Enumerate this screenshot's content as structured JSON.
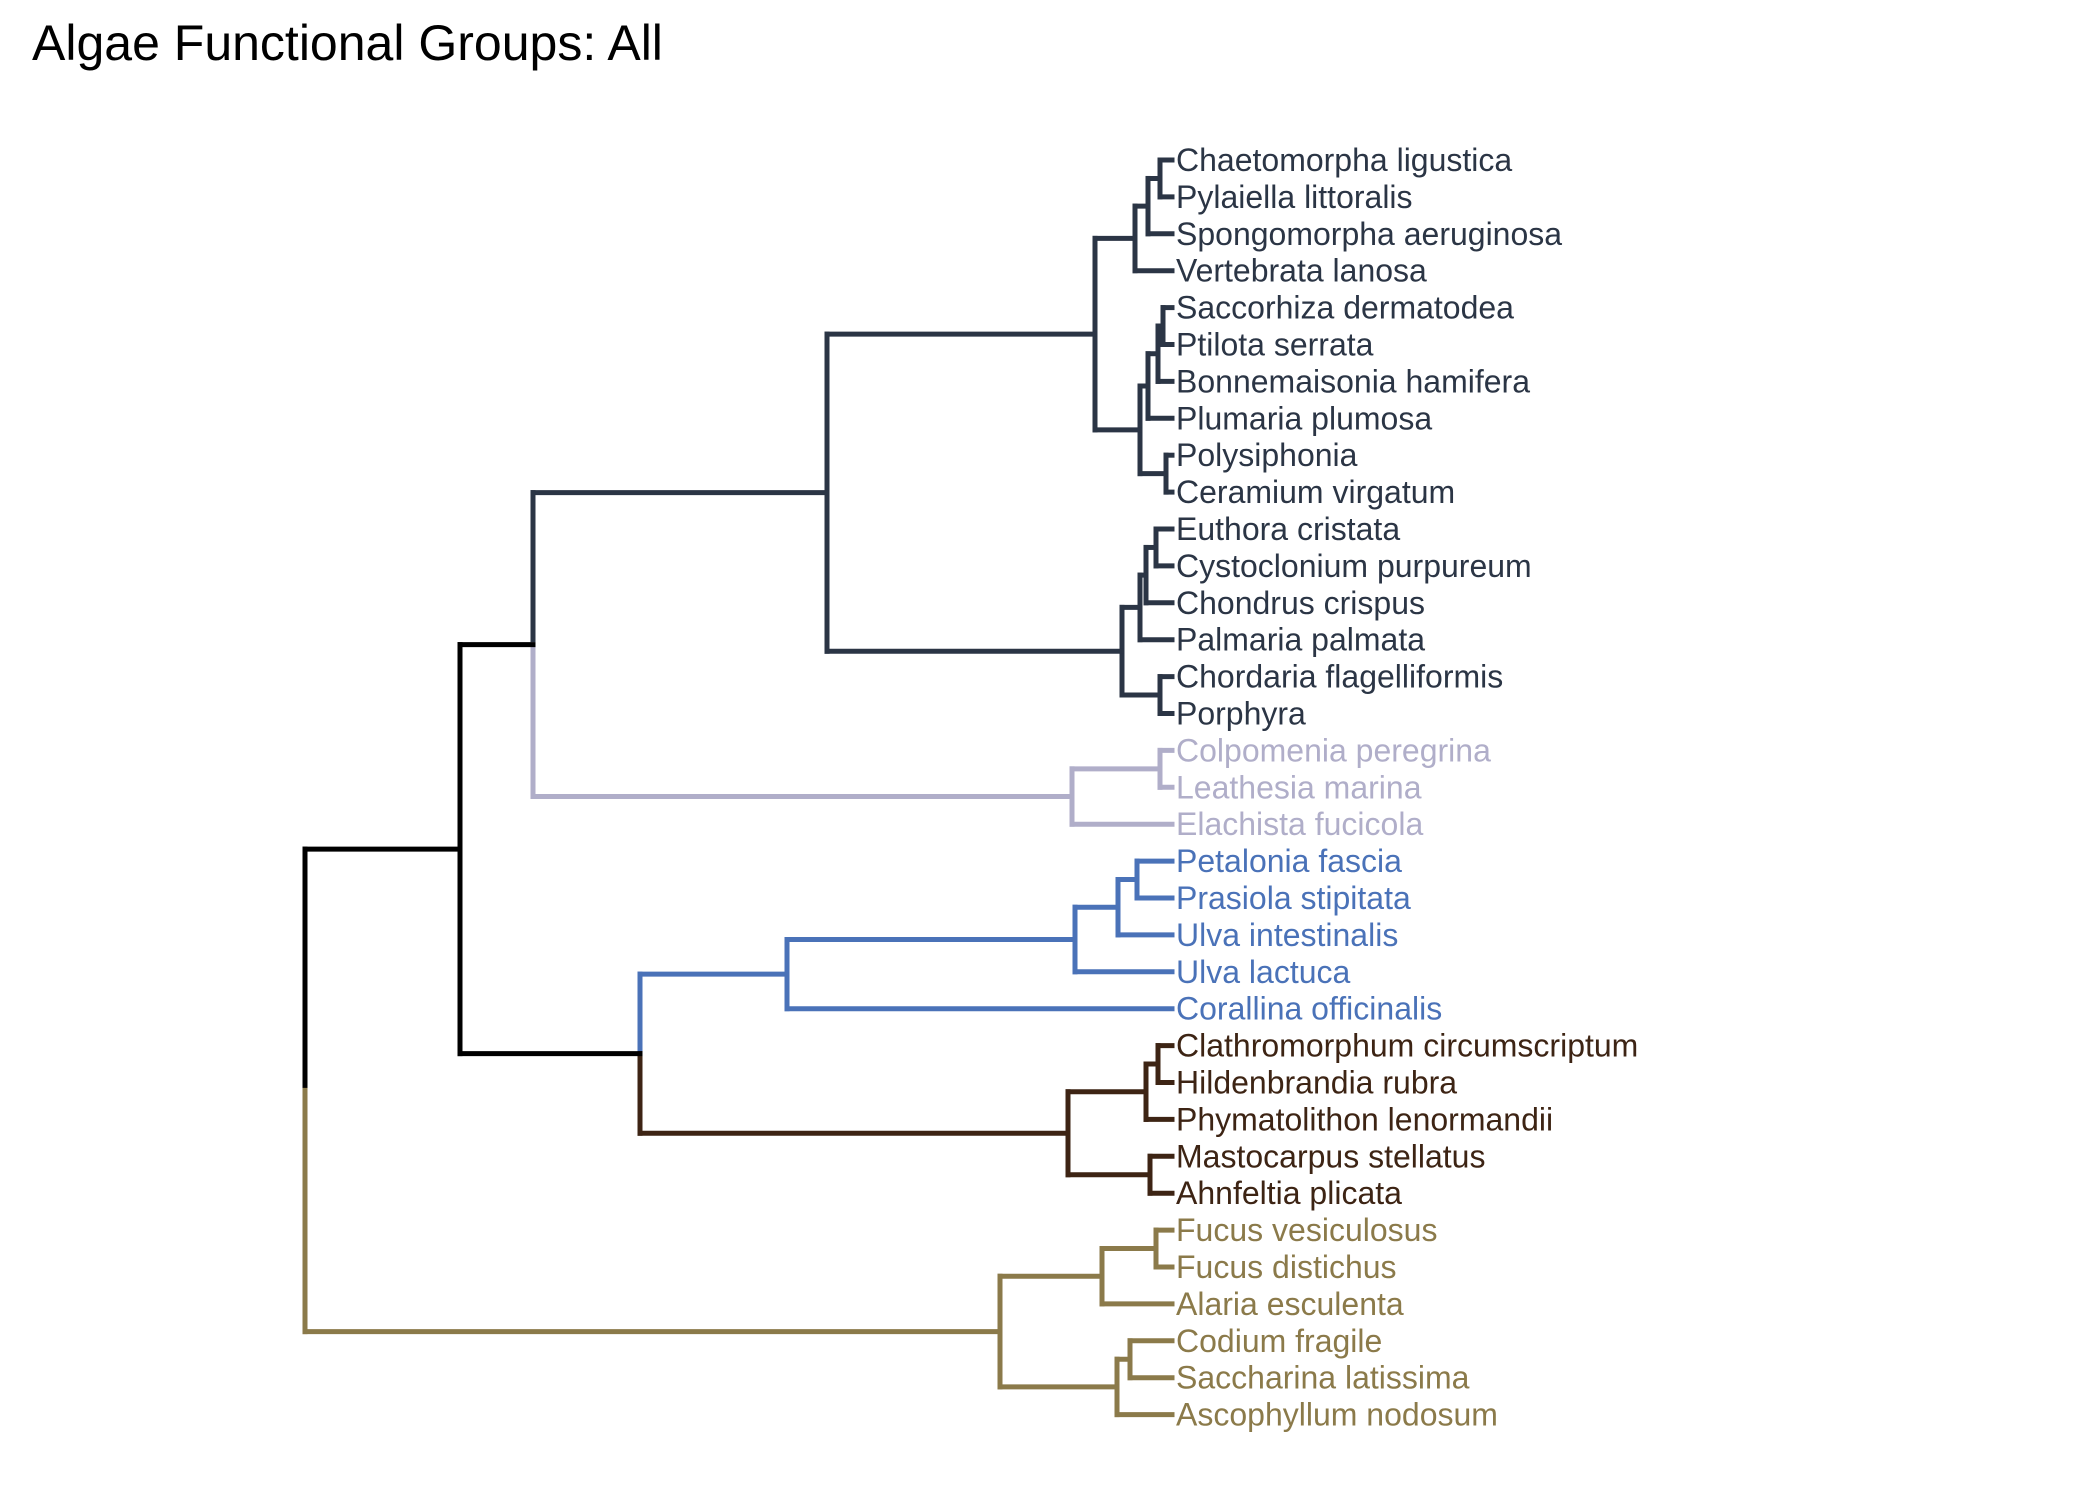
{
  "title": "Algae Functional Groups: All",
  "colors": {
    "root": "#000000",
    "group_navy": "#2b3545",
    "group_lavender": "#b0aec9",
    "group_blue": "#4a72b8",
    "group_brown": "#3d2414",
    "group_olive": "#8b7a4a"
  },
  "leaves": [
    {
      "label": "Chaetomorpha ligustica",
      "group": "group_navy"
    },
    {
      "label": "Pylaiella littoralis",
      "group": "group_navy"
    },
    {
      "label": "Spongomorpha aeruginosa",
      "group": "group_navy"
    },
    {
      "label": "Vertebrata lanosa",
      "group": "group_navy"
    },
    {
      "label": "Saccorhiza dermatodea",
      "group": "group_navy"
    },
    {
      "label": "Ptilota serrata",
      "group": "group_navy"
    },
    {
      "label": "Bonnemaisonia hamifera",
      "group": "group_navy"
    },
    {
      "label": "Plumaria plumosa",
      "group": "group_navy"
    },
    {
      "label": "Polysiphonia",
      "group": "group_navy"
    },
    {
      "label": "Ceramium virgatum",
      "group": "group_navy"
    },
    {
      "label": "Euthora cristata",
      "group": "group_navy"
    },
    {
      "label": "Cystoclonium purpureum",
      "group": "group_navy"
    },
    {
      "label": "Chondrus crispus",
      "group": "group_navy"
    },
    {
      "label": "Palmaria palmata",
      "group": "group_navy"
    },
    {
      "label": "Chordaria flagelliformis",
      "group": "group_navy"
    },
    {
      "label": "Porphyra",
      "group": "group_navy"
    },
    {
      "label": "Colpomenia peregrina",
      "group": "group_lavender"
    },
    {
      "label": "Leathesia marina",
      "group": "group_lavender"
    },
    {
      "label": "Elachista fucicola",
      "group": "group_lavender"
    },
    {
      "label": "Petalonia fascia",
      "group": "group_blue"
    },
    {
      "label": "Prasiola stipitata",
      "group": "group_blue"
    },
    {
      "label": "Ulva intestinalis",
      "group": "group_blue"
    },
    {
      "label": "Ulva lactuca",
      "group": "group_blue"
    },
    {
      "label": "Corallina officinalis",
      "group": "group_blue"
    },
    {
      "label": "Clathromorphum circumscriptum",
      "group": "group_brown"
    },
    {
      "label": "Hildenbrandia rubra",
      "group": "group_brown"
    },
    {
      "label": "Phymatolithon lenormandii",
      "group": "group_brown"
    },
    {
      "label": "Mastocarpus stellatus",
      "group": "group_brown"
    },
    {
      "label": "Ahnfeltia plicata",
      "group": "group_brown"
    },
    {
      "label": "Fucus vesiculosus",
      "group": "group_olive"
    },
    {
      "label": "Fucus distichus",
      "group": "group_olive"
    },
    {
      "label": "Alaria esculenta",
      "group": "group_olive"
    },
    {
      "label": "Codium fragile",
      "group": "group_olive"
    },
    {
      "label": "Saccharina latissima",
      "group": "group_olive"
    },
    {
      "label": "Ascophyllum nodosum",
      "group": "group_olive"
    }
  ]
}
